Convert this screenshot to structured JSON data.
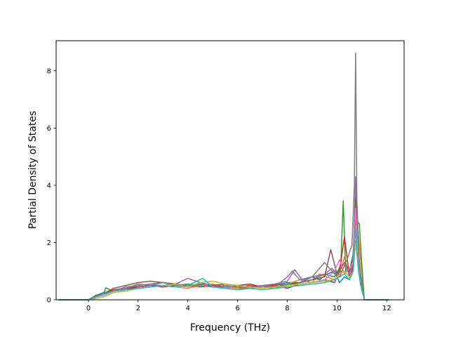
{
  "chart_data": {
    "type": "line",
    "title": "",
    "xlabel": "Frequency (THz)",
    "ylabel": "Partial Density of States",
    "xlim": [
      -1.3,
      12.7
    ],
    "ylim": [
      0,
      9.05
    ],
    "xticks": [
      "0",
      "2",
      "4",
      "6",
      "8",
      "10",
      "12"
    ],
    "yticks": [
      "0",
      "2",
      "4",
      "6",
      "8"
    ],
    "grid": false,
    "legend": "none",
    "series": [
      {
        "color": "#1f77b4",
        "x": [
          -1.2,
          0.0,
          0.3,
          0.6,
          1.0,
          1.5,
          2.0,
          2.5,
          3.0,
          3.5,
          4.0,
          4.5,
          5.0,
          5.5,
          6.0,
          6.5,
          7.0,
          7.5,
          8.0,
          8.5,
          9.0,
          9.3,
          9.6,
          9.9,
          10.1,
          10.3,
          10.5,
          10.65,
          10.75,
          10.85,
          10.95,
          11.1,
          12.1
        ],
        "y": [
          0,
          0,
          0.15,
          0.25,
          0.3,
          0.35,
          0.45,
          0.5,
          0.5,
          0.55,
          0.5,
          0.55,
          0.5,
          0.45,
          0.4,
          0.4,
          0.45,
          0.5,
          0.6,
          0.6,
          0.8,
          0.7,
          0.9,
          1.0,
          0.6,
          0.8,
          0.7,
          1.2,
          3.8,
          1.5,
          0.8,
          0,
          0
        ]
      },
      {
        "color": "#ff7f0e",
        "x": [
          -1.2,
          0.0,
          0.3,
          0.6,
          1.0,
          1.5,
          2.0,
          2.5,
          3.0,
          3.5,
          4.0,
          4.5,
          5.0,
          5.5,
          6.0,
          6.5,
          7.0,
          7.5,
          8.0,
          8.5,
          9.0,
          9.3,
          9.6,
          9.9,
          10.1,
          10.3,
          10.5,
          10.65,
          10.75,
          10.85,
          10.95,
          11.1,
          12.1
        ],
        "y": [
          0,
          0,
          0.1,
          0.2,
          0.3,
          0.4,
          0.5,
          0.55,
          0.6,
          0.5,
          0.45,
          0.5,
          0.55,
          0.45,
          0.4,
          0.45,
          0.5,
          0.4,
          0.55,
          0.7,
          0.6,
          0.9,
          0.8,
          0.7,
          0.9,
          1.5,
          0.8,
          1.0,
          2.0,
          2.4,
          1.4,
          0,
          0
        ]
      },
      {
        "color": "#2ca02c",
        "x": [
          -1.2,
          0.0,
          0.3,
          0.6,
          0.7,
          1.0,
          1.5,
          2.0,
          2.5,
          3.0,
          3.5,
          4.0,
          4.5,
          5.0,
          5.5,
          6.0,
          6.5,
          7.0,
          7.5,
          8.0,
          8.5,
          9.0,
          9.5,
          9.9,
          10.15,
          10.25,
          10.35,
          10.6,
          10.75,
          10.9,
          11.0,
          11.1,
          12.1
        ],
        "y": [
          0,
          0,
          0.15,
          0.2,
          0.42,
          0.3,
          0.35,
          0.5,
          0.55,
          0.6,
          0.5,
          0.55,
          0.5,
          0.45,
          0.5,
          0.45,
          0.4,
          0.5,
          0.45,
          0.55,
          0.6,
          0.7,
          0.9,
          0.8,
          1.2,
          3.45,
          1.0,
          1.1,
          2.8,
          2.65,
          1.2,
          0,
          0
        ]
      },
      {
        "color": "#d62728",
        "x": [
          -1.2,
          0.0,
          0.3,
          0.6,
          1.0,
          1.5,
          2.0,
          2.5,
          3.0,
          3.5,
          4.0,
          4.5,
          5.0,
          5.5,
          6.0,
          6.5,
          7.0,
          7.5,
          8.0,
          8.5,
          9.0,
          9.5,
          9.9,
          10.1,
          10.3,
          10.5,
          10.65,
          10.75,
          10.85,
          10.95,
          11.1,
          12.1
        ],
        "y": [
          0,
          0,
          0.1,
          0.2,
          0.35,
          0.4,
          0.45,
          0.5,
          0.45,
          0.5,
          0.55,
          0.45,
          0.5,
          0.55,
          0.5,
          0.55,
          0.45,
          0.5,
          0.4,
          0.55,
          0.6,
          0.7,
          0.6,
          1.0,
          2.2,
          0.8,
          1.1,
          3.0,
          1.6,
          0.7,
          0,
          0
        ]
      },
      {
        "color": "#9467bd",
        "x": [
          -1.2,
          0.0,
          0.3,
          0.6,
          1.0,
          1.5,
          2.0,
          2.5,
          3.0,
          3.5,
          4.0,
          4.5,
          5.0,
          5.5,
          6.0,
          6.5,
          7.0,
          7.5,
          8.0,
          8.3,
          8.6,
          9.0,
          9.5,
          9.8,
          10.1,
          10.3,
          10.5,
          10.65,
          10.75,
          10.85,
          10.95,
          11.1,
          12.1
        ],
        "y": [
          0,
          0,
          0.1,
          0.2,
          0.3,
          0.4,
          0.55,
          0.5,
          0.6,
          0.55,
          0.75,
          0.6,
          0.5,
          0.45,
          0.5,
          0.45,
          0.5,
          0.55,
          0.65,
          1.05,
          0.7,
          0.8,
          0.9,
          1.1,
          0.8,
          1.2,
          0.9,
          1.3,
          4.3,
          1.8,
          0.9,
          0,
          0
        ]
      },
      {
        "color": "#8c564b",
        "x": [
          -1.2,
          0.0,
          0.3,
          0.6,
          1.0,
          1.5,
          2.0,
          2.5,
          3.0,
          3.5,
          4.0,
          4.5,
          5.0,
          5.5,
          6.0,
          6.5,
          7.0,
          7.5,
          8.0,
          8.5,
          9.0,
          9.5,
          9.75,
          10.0,
          10.3,
          10.5,
          10.65,
          10.75,
          10.85,
          10.95,
          11.1,
          12.1
        ],
        "y": [
          0,
          0,
          0.15,
          0.2,
          0.4,
          0.5,
          0.6,
          0.65,
          0.6,
          0.55,
          0.5,
          0.45,
          0.5,
          0.4,
          0.45,
          0.5,
          0.45,
          0.55,
          0.5,
          0.6,
          0.7,
          0.8,
          1.75,
          0.9,
          1.3,
          1.0,
          1.6,
          3.5,
          1.4,
          0.7,
          0,
          0
        ]
      },
      {
        "color": "#e377c2",
        "x": [
          -1.2,
          0.0,
          0.3,
          0.6,
          1.0,
          1.5,
          2.0,
          2.5,
          3.0,
          3.5,
          4.0,
          4.5,
          5.0,
          5.5,
          6.0,
          6.5,
          7.0,
          7.5,
          8.0,
          8.5,
          9.0,
          9.5,
          9.9,
          10.1,
          10.3,
          10.5,
          10.65,
          10.75,
          10.85,
          10.95,
          11.1,
          12.1
        ],
        "y": [
          0,
          0,
          0.1,
          0.15,
          0.3,
          0.35,
          0.4,
          0.45,
          0.5,
          0.45,
          0.4,
          0.5,
          0.45,
          0.4,
          0.45,
          0.4,
          0.45,
          0.4,
          0.5,
          0.55,
          0.6,
          0.7,
          1.0,
          1.4,
          0.9,
          1.1,
          1.3,
          3.2,
          1.5,
          0.6,
          0,
          0
        ]
      },
      {
        "color": "#7f7f7f",
        "x": [
          -1.2,
          0.0,
          0.3,
          0.6,
          1.0,
          1.5,
          2.0,
          2.5,
          3.0,
          3.5,
          4.0,
          4.5,
          5.0,
          5.5,
          6.0,
          6.5,
          7.0,
          7.5,
          8.0,
          8.2,
          8.5,
          9.0,
          9.5,
          9.9,
          10.2,
          10.4,
          10.6,
          10.7,
          10.75,
          10.8,
          10.9,
          11.0,
          11.1,
          12.1
        ],
        "y": [
          0,
          0,
          0.1,
          0.2,
          0.3,
          0.45,
          0.5,
          0.55,
          0.6,
          0.5,
          0.55,
          0.5,
          0.45,
          0.5,
          0.45,
          0.4,
          0.5,
          0.45,
          0.8,
          1.0,
          0.7,
          0.8,
          1.3,
          0.9,
          1.0,
          1.4,
          1.9,
          4.0,
          8.62,
          3.5,
          1.2,
          0.5,
          0,
          0
        ]
      },
      {
        "color": "#bcbd22",
        "x": [
          -1.2,
          0.0,
          0.3,
          0.6,
          1.0,
          1.5,
          2.0,
          2.5,
          3.0,
          3.5,
          4.0,
          4.5,
          5.0,
          5.5,
          6.0,
          6.5,
          7.0,
          7.5,
          8.0,
          8.5,
          9.0,
          9.5,
          9.9,
          10.1,
          10.3,
          10.5,
          10.65,
          10.75,
          10.85,
          10.95,
          11.1,
          12.1
        ],
        "y": [
          0,
          0,
          0.05,
          0.1,
          0.25,
          0.3,
          0.4,
          0.45,
          0.5,
          0.55,
          0.45,
          0.6,
          0.65,
          0.55,
          0.5,
          0.45,
          0.4,
          0.45,
          0.5,
          0.55,
          0.6,
          0.65,
          0.7,
          0.9,
          1.0,
          0.8,
          1.0,
          2.0,
          1.2,
          0.5,
          0,
          0
        ]
      },
      {
        "color": "#17becf",
        "x": [
          -1.2,
          0.0,
          0.3,
          0.6,
          1.0,
          1.5,
          2.0,
          2.5,
          3.0,
          3.5,
          4.0,
          4.6,
          5.0,
          5.5,
          6.0,
          6.5,
          7.0,
          7.5,
          8.0,
          8.5,
          9.0,
          9.5,
          9.9,
          10.1,
          10.3,
          10.5,
          10.65,
          10.75,
          10.85,
          10.95,
          11.1,
          12.1
        ],
        "y": [
          0,
          0,
          0.1,
          0.2,
          0.3,
          0.35,
          0.4,
          0.45,
          0.5,
          0.45,
          0.5,
          0.75,
          0.45,
          0.4,
          0.35,
          0.4,
          0.35,
          0.4,
          0.45,
          0.5,
          0.55,
          0.6,
          0.7,
          0.8,
          0.9,
          0.7,
          1.0,
          2.5,
          1.1,
          0.5,
          0,
          0
        ]
      }
    ]
  }
}
